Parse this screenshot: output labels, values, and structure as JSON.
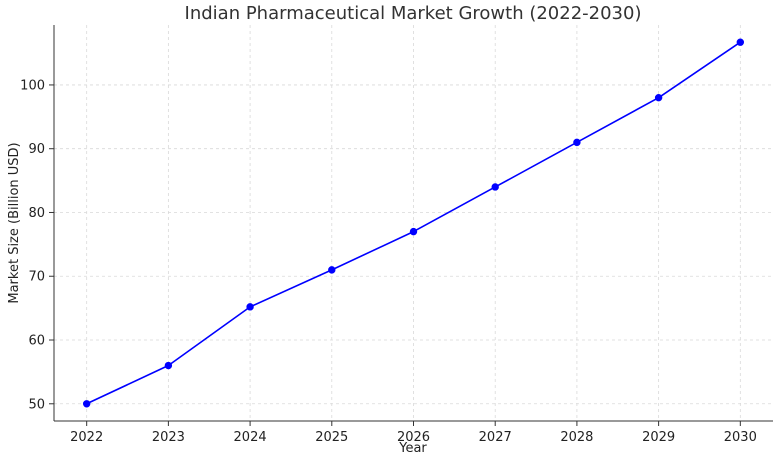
{
  "chart_data": {
    "type": "line",
    "title": "Indian Pharmaceutical Market Growth (2022-2030)",
    "xlabel": "Year",
    "ylabel": "Market Size (Billion USD)",
    "x": [
      2022,
      2023,
      2024,
      2025,
      2026,
      2027,
      2028,
      2029,
      2030
    ],
    "x_tick_labels": [
      "2022",
      "2023",
      "2024",
      "2025",
      "2026",
      "2027",
      "2028",
      "2029",
      "2030"
    ],
    "y_ticks": [
      50,
      60,
      70,
      80,
      90,
      100
    ],
    "y_tick_labels": [
      "50",
      "60",
      "70",
      "80",
      "90",
      "100"
    ],
    "xlim": [
      2021.6,
      2030.4
    ],
    "ylim": [
      47.3,
      109.4
    ],
    "grid": true,
    "series": [
      {
        "color": "#0000ff",
        "marker": "circle",
        "values": [
          50,
          56,
          65.2,
          71,
          77,
          84,
          91,
          98,
          106.7
        ]
      }
    ]
  }
}
